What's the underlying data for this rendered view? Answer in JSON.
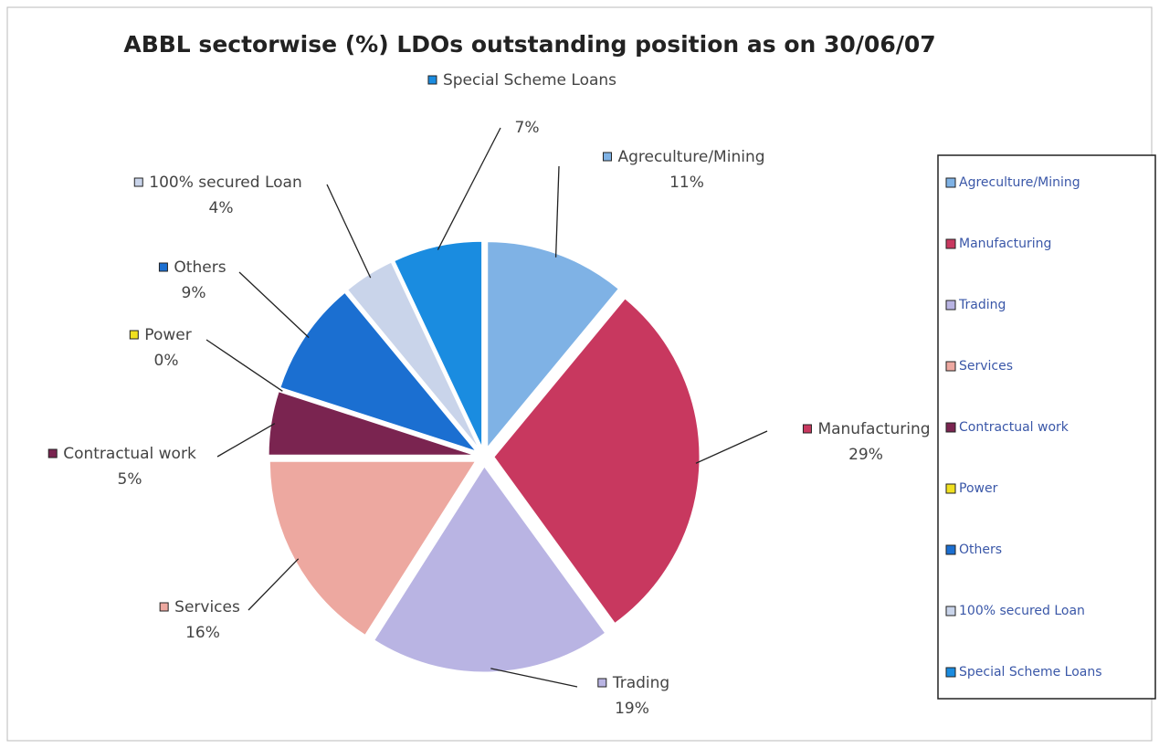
{
  "chart_data": {
    "type": "pie",
    "title": "ABBL sectorwise (%) LDOs outstanding position as on 30/06/07",
    "categories": [
      "Agreculture/Mining",
      "Manufacturing",
      "Trading",
      "Services",
      "Contractual work",
      "Power",
      "Others",
      "100% secured Loan",
      "Special Scheme Loans"
    ],
    "values": [
      11,
      29,
      19,
      16,
      5,
      0,
      9,
      4,
      7
    ],
    "value_labels": [
      "11%",
      "29%",
      "19%",
      "16%",
      "5%",
      "0%",
      "9%",
      "4%",
      "7%"
    ],
    "colors": [
      "#7fb2e5",
      "#c8385f",
      "#b9b4e3",
      "#eda8a0",
      "#7a2450",
      "#f0e020",
      "#1b6fd1",
      "#c9d4ea",
      "#1a8ce0"
    ],
    "legend": "right"
  }
}
